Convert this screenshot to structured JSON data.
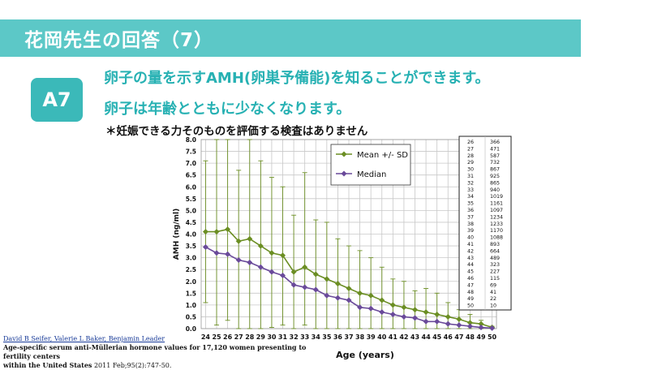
{
  "header": {
    "title": "花岡先生の回答（7）"
  },
  "answer": {
    "badge": "A7",
    "line1": "卵子の量を示すAMH(卵巣予備能)を知ることができます。",
    "line2": "卵子は年齢とともに少なくなります。",
    "note": "＊妊娠できる力そのものを評価する検査はありません"
  },
  "citation": {
    "authors": "David B Seifer, Valerie L Baker, Benjamin Leader",
    "title": "Age-specific serum anti-Müllerian hormone values for 17,120 women presenting to fertility centers",
    "source_prefix": "within the United States",
    "source_rest": " 2011 Feb;95(2):747-50."
  },
  "colors": {
    "header": "#5cc8c7",
    "badge": "#3bb9b9",
    "text": "#27b1b3",
    "mean": "#6b8e23",
    "median": "#6a4a9a"
  },
  "chart_data": {
    "type": "line",
    "xlabel": "Age (years)",
    "ylabel": "AMH (ng/ml)",
    "ylim": [
      0,
      8.0
    ],
    "yticks": [
      "0.0",
      "0.5",
      "1.0",
      "1.5",
      "2.0",
      "2.5",
      "3.0",
      "3.5",
      "4.0",
      "4.5",
      "5.0",
      "5.5",
      "6.0",
      "6.5",
      "7.0",
      "7.5",
      "8.0"
    ],
    "x": [
      24,
      25,
      26,
      27,
      28,
      29,
      30,
      31,
      32,
      33,
      34,
      35,
      36,
      37,
      38,
      39,
      40,
      41,
      42,
      43,
      44,
      45,
      46,
      47,
      48,
      49,
      50
    ],
    "series": [
      {
        "name": "Mean +/- SD",
        "marker": "diamond",
        "values": [
          4.1,
          4.1,
          4.2,
          3.7,
          3.8,
          3.5,
          3.2,
          3.1,
          2.4,
          2.6,
          2.3,
          2.1,
          1.9,
          1.7,
          1.5,
          1.4,
          1.2,
          1.0,
          0.9,
          0.8,
          0.7,
          0.6,
          0.5,
          0.4,
          0.25,
          0.2,
          0.05
        ],
        "upper": [
          7.1,
          8.0,
          8.0,
          6.7,
          8.0,
          7.1,
          6.4,
          6.0,
          4.8,
          6.6,
          4.6,
          4.5,
          3.8,
          3.5,
          3.3,
          3.0,
          2.6,
          2.1,
          2.0,
          1.6,
          1.7,
          1.5,
          1.1,
          0.8,
          0.6,
          0.35,
          0.1
        ],
        "lower": [
          1.1,
          0.15,
          0.35,
          0,
          0,
          0,
          0.05,
          0.15,
          0,
          0.15,
          0,
          0,
          0,
          0,
          0,
          0,
          0,
          0,
          0,
          0,
          0,
          0,
          0,
          0,
          0,
          0,
          0
        ]
      },
      {
        "name": "Median",
        "marker": "diamond",
        "values": [
          3.45,
          3.2,
          3.15,
          2.9,
          2.8,
          2.6,
          2.4,
          2.25,
          1.85,
          1.75,
          1.65,
          1.4,
          1.3,
          1.2,
          0.9,
          0.85,
          0.7,
          0.6,
          0.5,
          0.45,
          0.3,
          0.3,
          0.2,
          0.15,
          0.1,
          0.05,
          0.02
        ]
      }
    ],
    "legend_position": "top-center",
    "grid": true,
    "n_table": {
      "ages": [
        "26",
        "27",
        "28",
        "29",
        "30",
        "31",
        "32",
        "33",
        "34",
        "35",
        "36",
        "37",
        "38",
        "39",
        "40",
        "41",
        "42",
        "43",
        "44",
        "45",
        "46",
        "47",
        "48",
        "49",
        "50"
      ],
      "counts": [
        "366",
        "471",
        "587",
        "732",
        "867",
        "925",
        "865",
        "940",
        "1019",
        "1161",
        "1097",
        "1234",
        "1233",
        "1170",
        "1088",
        "893",
        "664",
        "489",
        "323",
        "227",
        "115",
        "69",
        "41",
        "22",
        "10"
      ]
    }
  }
}
